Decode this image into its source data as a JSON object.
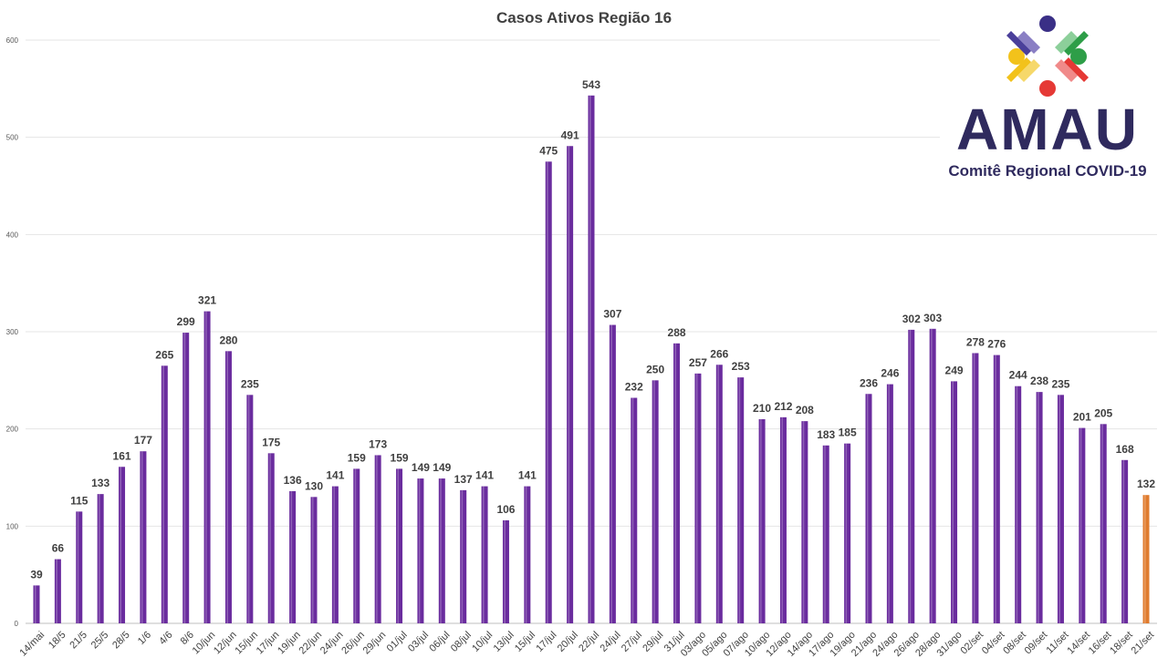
{
  "chart_data": {
    "type": "bar",
    "title": "Casos Ativos Região 16",
    "xlabel": "",
    "ylabel": "",
    "ylim": [
      0,
      600
    ],
    "yticks": [
      0,
      100,
      200,
      300,
      400,
      500,
      600
    ],
    "grid": true,
    "legend": "none",
    "bar_color": "#6a2c9e",
    "highlight_color": "#e07b2e",
    "highlight_last": true,
    "categories": [
      "14/mai",
      "18/5",
      "21/5",
      "25/5",
      "28/5",
      "1/6",
      "4/6",
      "8/6",
      "10/jun",
      "12/jun",
      "15/jun",
      "17/jun",
      "19/jun",
      "22/jun",
      "24/jun",
      "26/jun",
      "29/jun",
      "01/jul",
      "03/jul",
      "06/jul",
      "08/jul",
      "10/jul",
      "13/jul",
      "15/jul",
      "17/jul",
      "20/jul",
      "22/jul",
      "24/jul",
      "27/jul",
      "29/jul",
      "31/jul",
      "03/ago",
      "05/ago",
      "07/ago",
      "10/ago",
      "12/ago",
      "14/ago",
      "17/ago",
      "19/ago",
      "21/ago",
      "24/ago",
      "26/ago",
      "28/ago",
      "31/ago",
      "02/set",
      "04/set",
      "08/set",
      "09/set",
      "11/set",
      "14/set",
      "16/set",
      "18/set",
      "21/set"
    ],
    "values": [
      39,
      66,
      115,
      133,
      161,
      177,
      265,
      299,
      321,
      280,
      235,
      175,
      136,
      130,
      141,
      159,
      173,
      159,
      149,
      149,
      137,
      141,
      106,
      141,
      475,
      491,
      543,
      307,
      232,
      250,
      288,
      257,
      266,
      253,
      210,
      212,
      208,
      183,
      185,
      236,
      246,
      302,
      303,
      249,
      278,
      276,
      244,
      238,
      235,
      201,
      205,
      168,
      132
    ]
  },
  "logo": {
    "name": "AMAU",
    "subtitle": "Comitê Regional COVID-19"
  }
}
